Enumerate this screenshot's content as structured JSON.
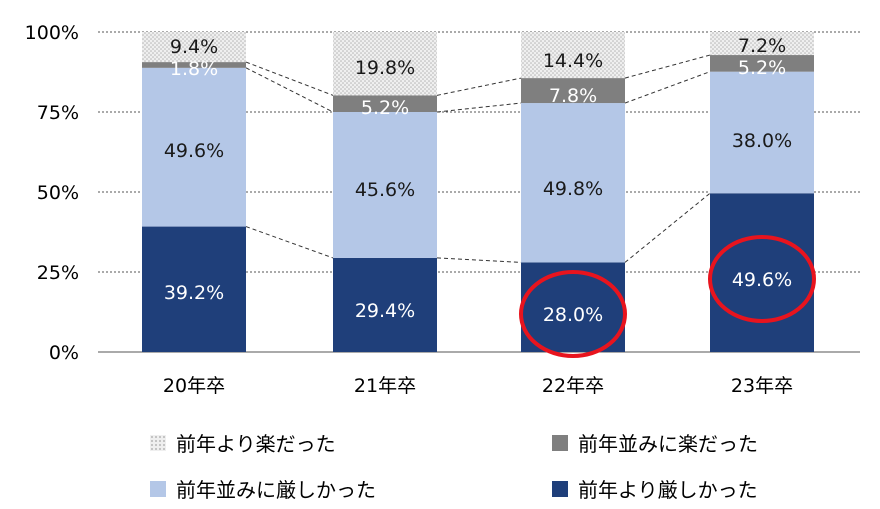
{
  "chart_data": {
    "type": "bar",
    "stacked": true,
    "categories": [
      "20年卒",
      "21年卒",
      "22年卒",
      "23年卒"
    ],
    "ylim": [
      0,
      100
    ],
    "yticks": [
      "0%",
      "25%",
      "50%",
      "75%",
      "100%"
    ],
    "grid": true,
    "series": [
      {
        "name": "前年より厳しかった",
        "values": [
          39.2,
          29.4,
          28.0,
          49.6
        ],
        "labels": [
          "39.2%",
          "29.4%",
          "28.0%",
          "49.6%"
        ],
        "color": "#1f3f7a",
        "label_color": "#ffffff"
      },
      {
        "name": "前年並みに厳しかった",
        "values": [
          49.6,
          45.6,
          49.8,
          38.0
        ],
        "labels": [
          "49.6%",
          "45.6%",
          "49.8%",
          "38.0%"
        ],
        "color": "#b4c7e7",
        "label_color": "#1a1a1a"
      },
      {
        "name": "前年並みに楽だった",
        "values": [
          1.8,
          5.2,
          7.8,
          5.2
        ],
        "labels": [
          "1.8%",
          "5.2%",
          "7.8%",
          "5.2%"
        ],
        "color": "#7f7f7f",
        "label_color": "#ffffff"
      },
      {
        "name": "前年より楽だった",
        "values": [
          9.4,
          19.8,
          14.4,
          7.2
        ],
        "labels": [
          "9.4%",
          "19.8%",
          "14.4%",
          "7.2%"
        ],
        "color": "#e6e6e6",
        "label_color": "#1a1a1a"
      }
    ],
    "highlight": [
      {
        "series": 0,
        "category": 2
      },
      {
        "series": 0,
        "category": 3
      }
    ],
    "highlight_color": "#e8141e",
    "legend_position": "bottom"
  },
  "legend": [
    {
      "label": "前年より楽だった",
      "color": "#e6e6e6"
    },
    {
      "label": "前年並みに楽だった",
      "color": "#7f7f7f"
    },
    {
      "label": "前年並みに厳しかった",
      "color": "#b4c7e7"
    },
    {
      "label": "前年より厳しかった",
      "color": "#1f3f7a"
    }
  ]
}
